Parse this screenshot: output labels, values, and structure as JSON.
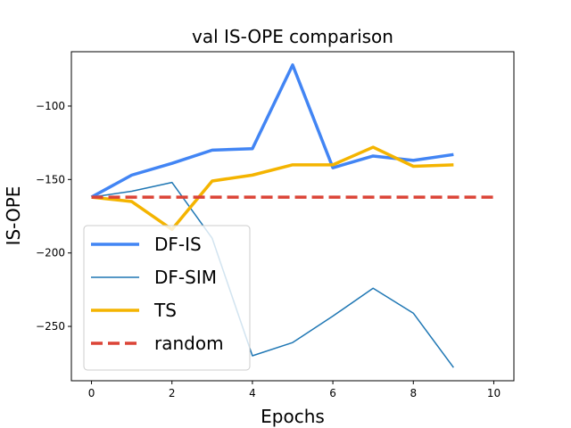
{
  "chart_data": {
    "type": "line",
    "title": "val IS-OPE comparison",
    "xlabel": "Epochs",
    "ylabel": "IS-OPE",
    "xlim": [
      -0.5,
      10.5
    ],
    "ylim": [
      -287,
      -63
    ],
    "xticks": [
      0,
      2,
      4,
      6,
      8,
      10
    ],
    "xtick_labels": [
      "0",
      "2",
      "4",
      "6",
      "8",
      "10"
    ],
    "yticks": [
      -250,
      -200,
      -150,
      -100
    ],
    "ytick_labels": [
      "−250",
      "−200",
      "−150",
      "−100"
    ],
    "grid": false,
    "legend_position": "lower-left",
    "series": [
      {
        "name": "DF-IS",
        "color": "#4285f4",
        "style": "solid",
        "thickness": "thick",
        "x": [
          0,
          1,
          2,
          3,
          4,
          5,
          6,
          7,
          8,
          9
        ],
        "values": [
          -162,
          -147,
          -139,
          -130,
          -129,
          -72,
          -142,
          -134,
          -137,
          -133
        ]
      },
      {
        "name": "DF-SIM",
        "color": "#1f77b4",
        "style": "solid",
        "thickness": "thin",
        "x": [
          0,
          1,
          2,
          3,
          4,
          5,
          6,
          7,
          8,
          9
        ],
        "values": [
          -162,
          -158,
          -152,
          -190,
          -270,
          -261,
          -243,
          -224,
          -241,
          -278
        ]
      },
      {
        "name": "TS",
        "color": "#f4b400",
        "style": "solid",
        "thickness": "thick",
        "x": [
          0,
          1,
          2,
          3,
          4,
          5,
          6,
          7,
          8,
          9
        ],
        "values": [
          -162,
          -165,
          -184,
          -151,
          -147,
          -140,
          -140,
          -128,
          -141,
          -140
        ]
      },
      {
        "name": "random",
        "color": "#db4437",
        "style": "dashed",
        "thickness": "thick",
        "x": [
          0,
          10
        ],
        "values": [
          -162,
          -162
        ]
      }
    ]
  }
}
